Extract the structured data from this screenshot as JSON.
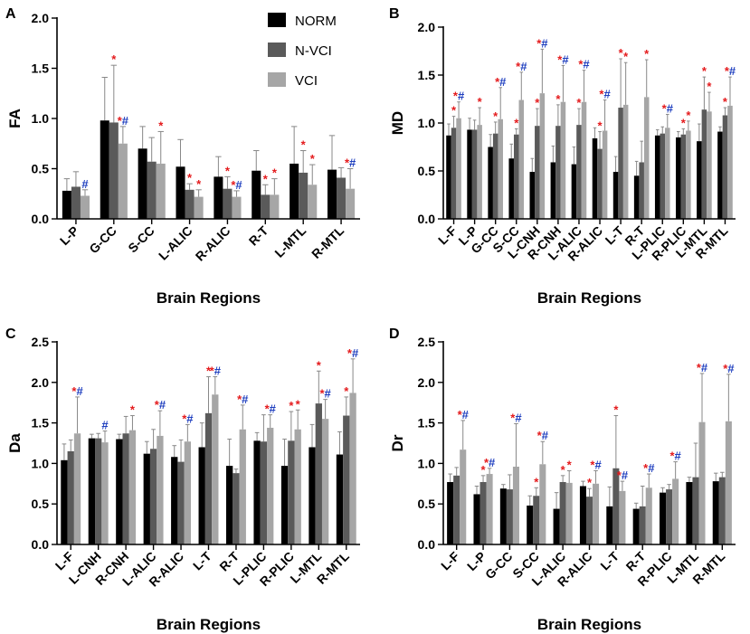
{
  "legend": {
    "entries": [
      {
        "name": "NORM",
        "color": "#000000"
      },
      {
        "name": "N-VCI",
        "color": "#5a5a5a"
      },
      {
        "name": "VCI",
        "color": "#a6a6a6"
      }
    ]
  },
  "colors": {
    "star": "#e41a1c",
    "hash": "#1f3fbf",
    "error_bar": "#888888"
  },
  "chart_data": [
    {
      "panel": "A",
      "type": "bar",
      "xlabel": "Brain Regions",
      "ylabel": "FA",
      "ylim": [
        0,
        2.0
      ],
      "yticks": [
        "0.0",
        "0.5",
        "1.0",
        "1.5",
        "2.0"
      ],
      "categories": [
        "L-P",
        "G-CC",
        "S-CC",
        "L-ALIC",
        "R-ALIC",
        "R-T",
        "L-MTL",
        "R-MTL"
      ],
      "series": [
        {
          "name": "NORM",
          "values": [
            0.28,
            0.98,
            0.7,
            0.52,
            0.42,
            0.48,
            0.55,
            0.49
          ],
          "errors": [
            0.12,
            0.43,
            0.22,
            0.27,
            0.2,
            0.2,
            0.37,
            0.34
          ]
        },
        {
          "name": "N-VCI",
          "values": [
            0.32,
            0.96,
            0.57,
            0.29,
            0.3,
            0.24,
            0.46,
            0.41
          ],
          "errors": [
            0.15,
            0.57,
            0.24,
            0.06,
            0.12,
            0.1,
            0.22,
            0.1
          ]
        },
        {
          "name": "VCI",
          "values": [
            0.23,
            0.75,
            0.55,
            0.22,
            0.22,
            0.24,
            0.34,
            0.3
          ],
          "errors": [
            0.06,
            0.17,
            0.32,
            0.07,
            0.06,
            0.16,
            0.2,
            0.2
          ]
        }
      ],
      "significance": [
        {
          "series": "N-VCI",
          "marks": [
            "",
            "*",
            "",
            "*",
            "*",
            "*",
            "*",
            ""
          ]
        },
        {
          "series": "VCI",
          "marks": [
            "#",
            "*#",
            "*",
            "*",
            "*#",
            "*",
            "*",
            "*#"
          ]
        }
      ]
    },
    {
      "panel": "B",
      "type": "bar",
      "xlabel": "Brain Regions",
      "ylabel": "MD",
      "ylim": [
        0,
        2.0
      ],
      "yticks": [
        "0.0",
        "0.5",
        "1.0",
        "1.5",
        "2.0"
      ],
      "categories": [
        "L-F",
        "L-P",
        "G-CC",
        "S-CC",
        "L-CNH",
        "R-CNH",
        "L-ALIC",
        "R-ALIC",
        "L-T",
        "R-T",
        "L-PLIC",
        "R-PLIC",
        "L-MTL",
        "R-MTL"
      ],
      "series": [
        {
          "name": "NORM",
          "values": [
            0.87,
            0.93,
            0.75,
            0.63,
            0.49,
            0.59,
            0.57,
            0.84,
            0.49,
            0.45,
            0.87,
            0.85,
            0.81,
            0.91
          ],
          "errors": [
            0.12,
            0.12,
            0.13,
            0.15,
            0.14,
            0.17,
            0.18,
            0.11,
            0.16,
            0.15,
            0.06,
            0.06,
            0.18,
            0.05
          ]
        },
        {
          "name": "N-VCI",
          "values": [
            0.95,
            0.93,
            0.89,
            0.88,
            0.97,
            0.97,
            0.98,
            0.73,
            1.16,
            0.59,
            0.89,
            0.88,
            1.14,
            1.08
          ],
          "errors": [
            0.12,
            0.1,
            0.12,
            0.06,
            0.18,
            0.22,
            0.17,
            0.18,
            0.51,
            0.22,
            0.07,
            0.06,
            0.34,
            0.08
          ]
        },
        {
          "name": "VCI",
          "values": [
            1.05,
            0.98,
            1.04,
            1.24,
            1.31,
            1.22,
            1.22,
            0.92,
            1.19,
            1.27,
            0.95,
            0.92,
            1.12,
            1.18
          ],
          "errors": [
            0.17,
            0.18,
            0.33,
            0.29,
            0.46,
            0.38,
            0.33,
            0.32,
            0.44,
            0.39,
            0.14,
            0.1,
            0.2,
            0.3
          ]
        }
      ],
      "significance": [
        {
          "series": "N-VCI",
          "marks": [
            "*",
            "",
            "*",
            "*",
            "*",
            "*",
            "*",
            "*",
            "*",
            "",
            "",
            "*",
            "*",
            "*"
          ]
        },
        {
          "series": "VCI",
          "marks": [
            "*#",
            "*",
            "*#",
            "*#",
            "*#",
            "*#",
            "*#",
            "*#",
            "*",
            "*",
            "*#",
            "*",
            "*",
            "*#"
          ]
        }
      ]
    },
    {
      "panel": "C",
      "type": "bar",
      "xlabel": "Brain Regions",
      "ylabel": "Da",
      "ylim": [
        0,
        2.5
      ],
      "yticks": [
        "0.0",
        "0.5",
        "1.0",
        "1.5",
        "2.0",
        "2.5"
      ],
      "categories": [
        "L-F",
        "L-CNH",
        "R-CNH",
        "L-ALIC",
        "R-ALIC",
        "L-T",
        "R-T",
        "L-PLIC",
        "R-PLIC",
        "L-MTL",
        "R-MTL"
      ],
      "series": [
        {
          "name": "NORM",
          "values": [
            1.04,
            1.31,
            1.3,
            1.12,
            1.08,
            1.2,
            0.97,
            1.28,
            0.97,
            1.2,
            1.11
          ],
          "errors": [
            0.2,
            0.05,
            0.06,
            0.15,
            0.14,
            0.3,
            0.33,
            0.1,
            0.33,
            0.28,
            0.28
          ]
        },
        {
          "name": "N-VCI",
          "values": [
            1.15,
            1.31,
            1.37,
            1.18,
            1.02,
            1.62,
            0.88,
            1.27,
            1.28,
            1.74,
            1.59
          ],
          "errors": [
            0.14,
            0.06,
            0.21,
            0.24,
            0.27,
            0.45,
            0.05,
            0.33,
            0.36,
            0.4,
            0.23
          ]
        },
        {
          "name": "VCI",
          "values": [
            1.37,
            1.26,
            1.41,
            1.34,
            1.27,
            1.85,
            1.42,
            1.44,
            1.42,
            1.55,
            1.87
          ],
          "errors": [
            0.45,
            0.14,
            0.18,
            0.31,
            0.21,
            0.22,
            0.3,
            0.16,
            0.24,
            0.24,
            0.42
          ]
        }
      ],
      "significance": [
        {
          "series": "N-VCI",
          "marks": [
            "",
            "",
            "",
            "",
            "",
            "*",
            "",
            "",
            "*",
            "*",
            "*"
          ]
        },
        {
          "series": "VCI",
          "marks": [
            "*#",
            "#",
            "*",
            "*#",
            "*#",
            "*#",
            "*#",
            "*#",
            "*",
            "*#",
            "*#"
          ]
        }
      ]
    },
    {
      "panel": "D",
      "type": "bar",
      "xlabel": "Brain Regions",
      "ylabel": "Dr",
      "ylim": [
        0,
        2.5
      ],
      "yticks": [
        "0.0",
        "0.5",
        "1.0",
        "1.5",
        "2.0",
        "2.5"
      ],
      "categories": [
        "L-F",
        "L-P",
        "G-CC",
        "S-CC",
        "L-ALIC",
        "R-ALIC",
        "L-T",
        "R-T",
        "R-PLIC",
        "L-MTL",
        "R-MTL"
      ],
      "series": [
        {
          "name": "NORM",
          "values": [
            0.77,
            0.62,
            0.69,
            0.48,
            0.44,
            0.72,
            0.47,
            0.44,
            0.64,
            0.77,
            0.78
          ],
          "errors": [
            0.1,
            0.1,
            0.05,
            0.12,
            0.2,
            0.06,
            0.24,
            0.07,
            0.06,
            0.06,
            0.1
          ]
        },
        {
          "name": "N-VCI",
          "values": [
            0.85,
            0.77,
            0.68,
            0.6,
            0.77,
            0.59,
            0.94,
            0.47,
            0.68,
            0.83,
            0.83
          ],
          "errors": [
            0.1,
            0.08,
            0.18,
            0.1,
            0.08,
            0.1,
            0.65,
            0.25,
            0.06,
            0.42,
            0.06
          ]
        },
        {
          "name": "VCI",
          "values": [
            1.17,
            0.87,
            0.96,
            0.99,
            0.76,
            0.75,
            0.66,
            0.7,
            0.81,
            1.51,
            1.52
          ],
          "errors": [
            0.36,
            0.07,
            0.53,
            0.28,
            0.15,
            0.16,
            0.12,
            0.17,
            0.21,
            0.6,
            0.58
          ]
        }
      ],
      "significance": [
        {
          "series": "N-VCI",
          "marks": [
            "",
            "*",
            "",
            "*",
            "*",
            "*",
            "*",
            "",
            "",
            "",
            ""
          ]
        },
        {
          "series": "VCI",
          "marks": [
            "*#",
            "*#",
            "*#",
            "*#",
            "*",
            "*#",
            "*#",
            "*#",
            "*#",
            "*#",
            "*#"
          ]
        }
      ]
    }
  ]
}
